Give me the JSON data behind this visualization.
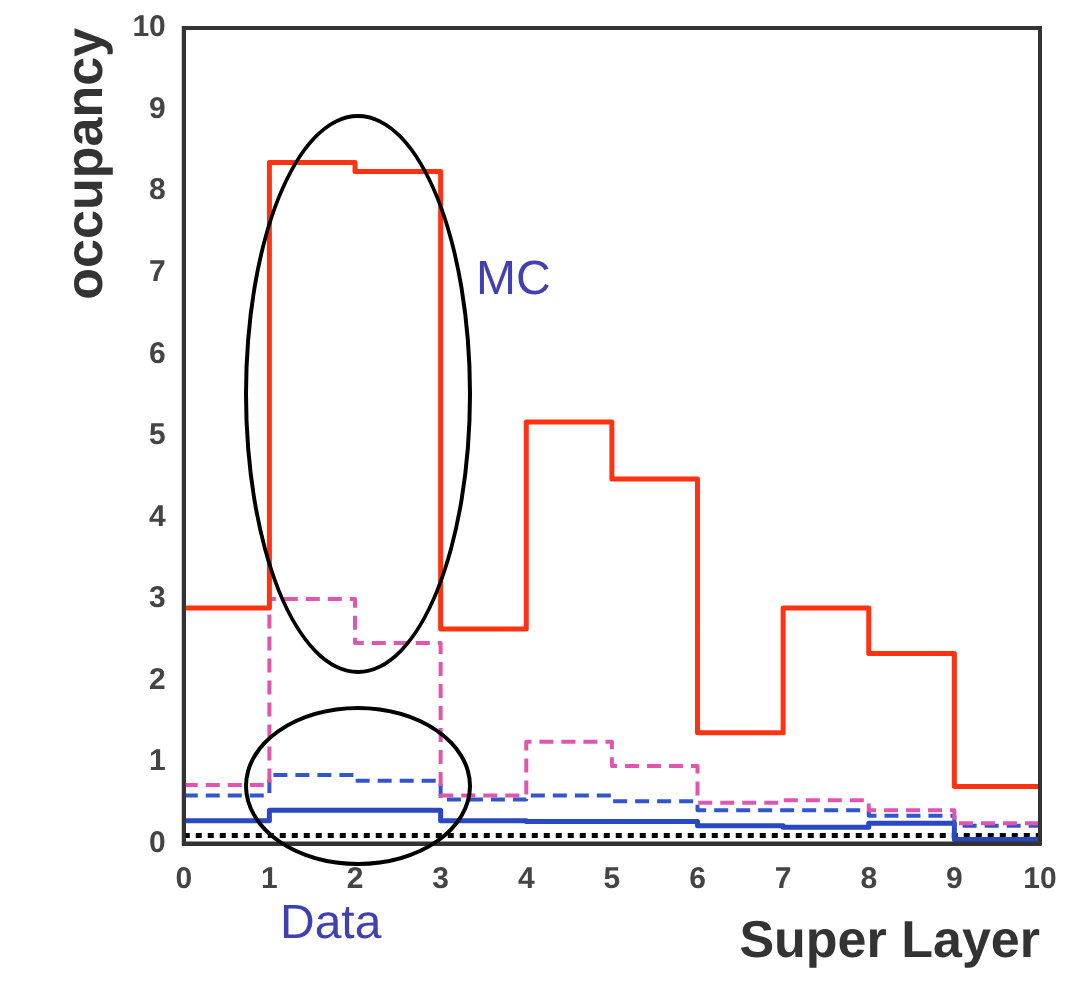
{
  "chart_data": {
    "type": "histogram",
    "xlabel": "Super Layer",
    "ylabel": "occupancy",
    "bins": [
      0,
      1,
      2,
      3,
      4,
      5,
      6,
      7,
      8,
      9,
      10
    ],
    "series": [
      {
        "color": "#ff3311",
        "line_style": "solid",
        "values": [
          2.89,
          8.35,
          8.24,
          2.63,
          5.17,
          4.47,
          1.36,
          2.89,
          2.33,
          0.7
        ]
      },
      {
        "color": "#e055b0",
        "line_style": "dashed",
        "values": [
          0.72,
          3.0,
          2.46,
          0.59,
          1.25,
          0.95,
          0.5,
          0.53,
          0.41,
          0.25
        ]
      },
      {
        "color": "#3355cc",
        "line_style": "dashed",
        "values": [
          0.59,
          0.84,
          0.77,
          0.54,
          0.59,
          0.52,
          0.41,
          0.41,
          0.34,
          0.22
        ]
      },
      {
        "color": "#2a48c0",
        "line_style": "solid",
        "values": [
          0.28,
          0.41,
          0.41,
          0.28,
          0.27,
          0.27,
          0.22,
          0.2,
          0.25,
          0.05
        ]
      },
      {
        "color": "#000000",
        "line_style": "dotted",
        "values": [
          0.1,
          0.1,
          0.1,
          0.1,
          0.1,
          0.1,
          0.1,
          0.1,
          0.1,
          0.1
        ]
      }
    ],
    "xlim": [
      0,
      10
    ],
    "xticks": [
      0,
      1,
      2,
      3,
      4,
      5,
      6,
      7,
      8,
      9,
      10
    ],
    "ylim": [
      0,
      10
    ],
    "yticks": [
      0,
      1,
      2,
      3,
      4,
      5,
      6,
      7,
      8,
      9,
      10
    ],
    "grid": false,
    "legend": false,
    "marker": "none",
    "annotations": [
      "MC",
      "Data"
    ]
  }
}
